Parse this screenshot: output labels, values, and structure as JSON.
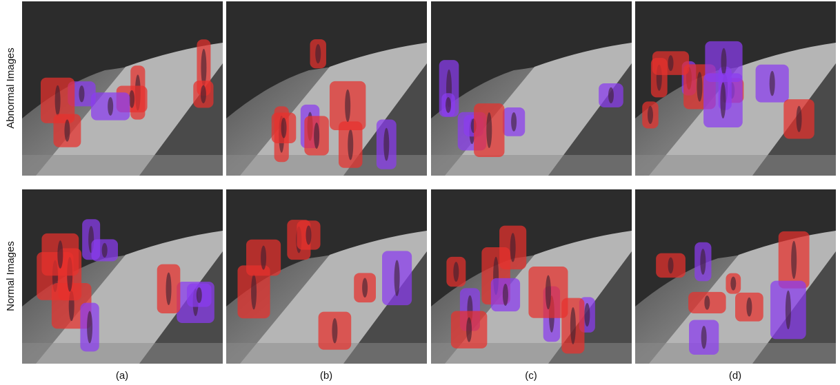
{
  "row_labels": [
    "Abnormal Images",
    "Normal Images"
  ],
  "column_labels": [
    "(a)",
    "(b)",
    "(c)",
    "(d)"
  ]
}
